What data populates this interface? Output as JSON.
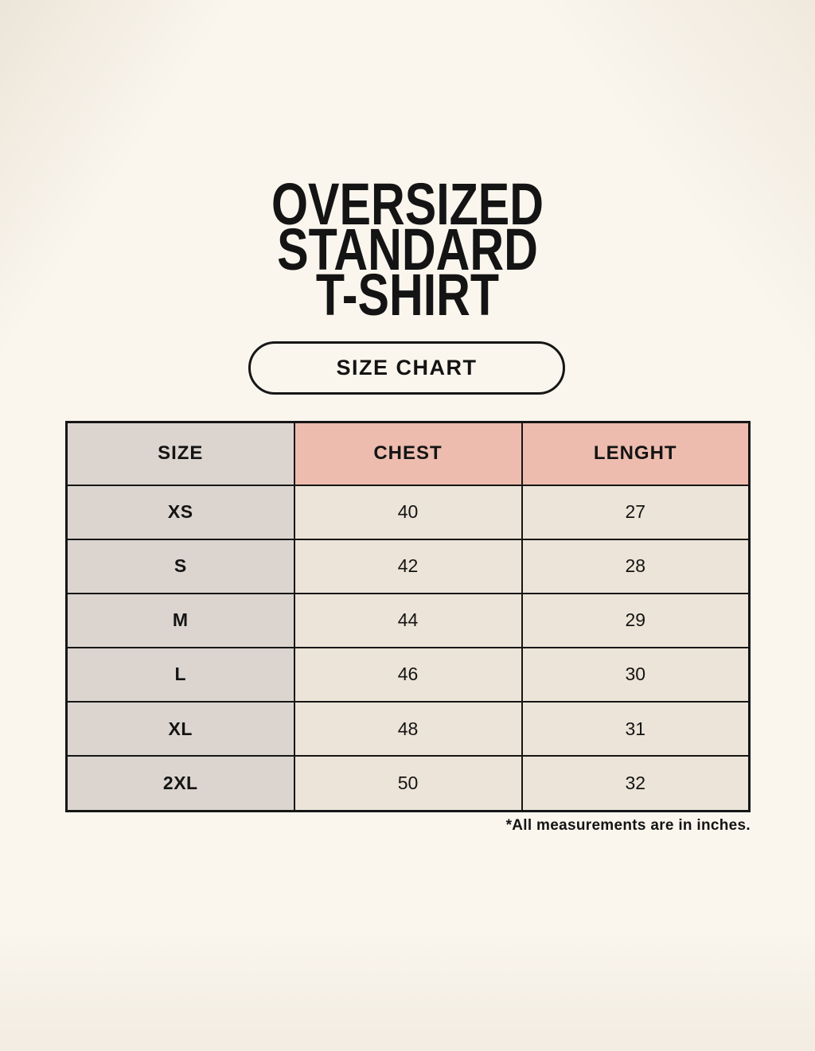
{
  "title": {
    "lines": [
      "OVERSIZED",
      "STANDARD",
      "T-SHIRT"
    ]
  },
  "size_chart_button": {
    "label": "SIZE CHART"
  },
  "footnote": "*All measurements are in inches.",
  "colors": {
    "background": "#faf6ee",
    "size_column_bg": "#dcd5cf",
    "header_accent_bg": "#edbcae",
    "cell_bg": "#ece4d8",
    "border": "#161616",
    "text": "#141414"
  },
  "chart_data": {
    "type": "table",
    "title": "OVERSIZED STANDARD T-SHIRT",
    "columns": [
      "SIZE",
      "CHEST",
      "LENGHT"
    ],
    "rows": [
      [
        "XS",
        40,
        27
      ],
      [
        "S",
        42,
        28
      ],
      [
        "M",
        44,
        29
      ],
      [
        "L",
        46,
        30
      ],
      [
        "XL",
        48,
        31
      ],
      [
        "2XL",
        50,
        32
      ]
    ],
    "units_note": "*All measurements are in inches."
  }
}
